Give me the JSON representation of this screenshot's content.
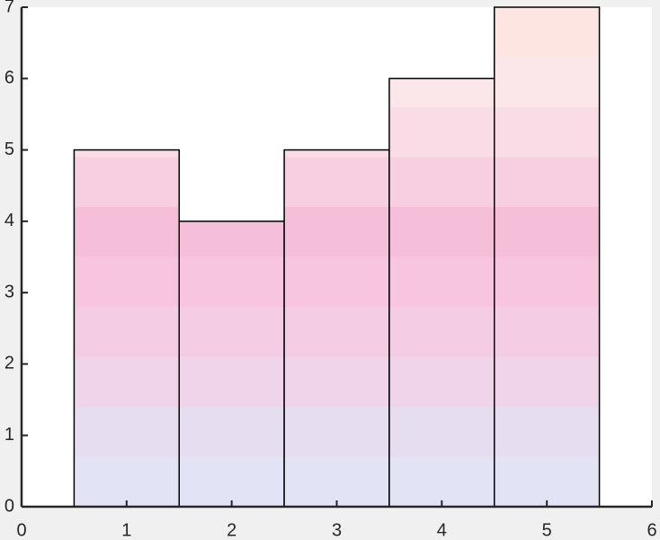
{
  "chart_data": {
    "type": "bar",
    "x": [
      1,
      2,
      3,
      4,
      5
    ],
    "values": [
      5,
      4,
      5,
      6,
      7
    ],
    "colors": [
      "#e2e3f5",
      "#e7ddf0",
      "#efd4ea",
      "#f4cce4",
      "#f7c6de",
      "#f6bfd9",
      "#f8cfe1",
      "#fadce6",
      "#fbe6ea",
      "#fde5e2"
    ],
    "edgecolor": "#000000",
    "xlim": [
      0,
      6
    ],
    "xticks": [
      0,
      1,
      2,
      3,
      4,
      5,
      6
    ],
    "ylim": [
      0,
      7
    ],
    "yticks": [
      0,
      1,
      2,
      3,
      4,
      5,
      6,
      7
    ]
  }
}
